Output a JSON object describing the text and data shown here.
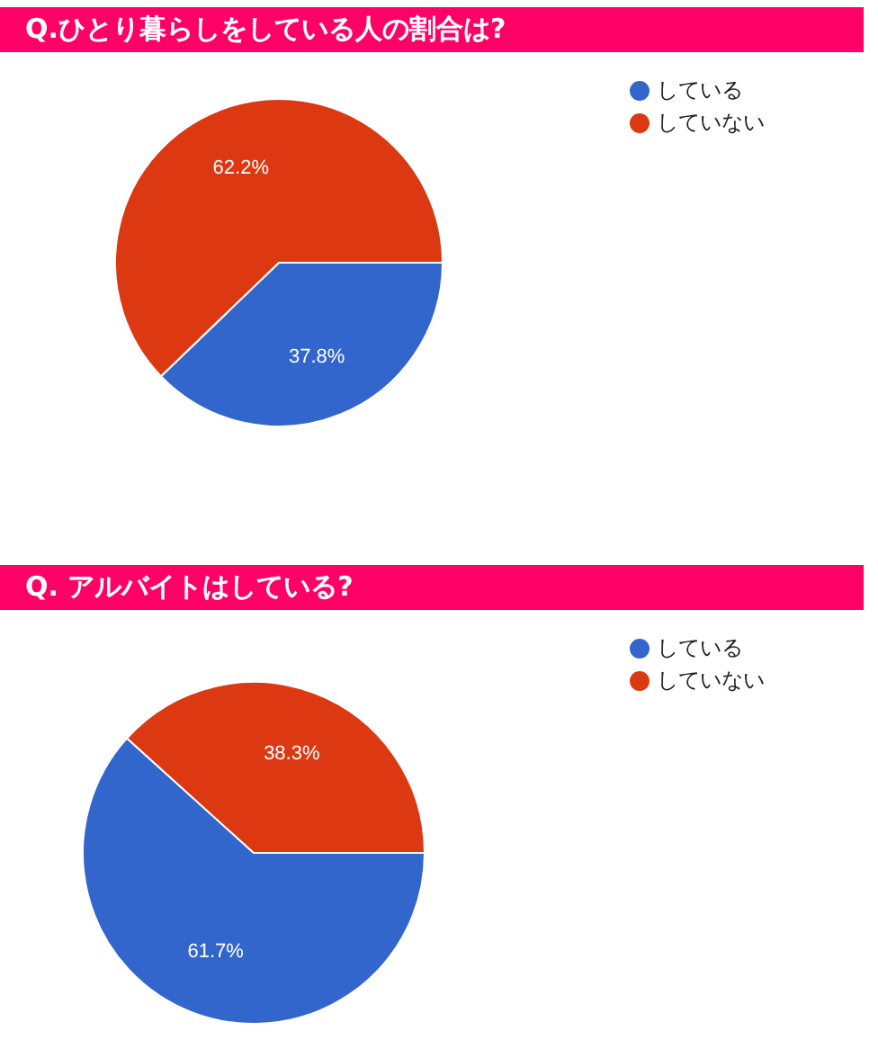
{
  "chart_data": [
    {
      "type": "pie",
      "title": "Q.ひとり暮らしをしている人の割合は?",
      "categories": [
        "している",
        "していない"
      ],
      "values": [
        37.8,
        62.2
      ],
      "value_labels": [
        "37.8%",
        "62.2%"
      ],
      "colors": [
        "#3366cc",
        "#dc3912"
      ],
      "legend": "top right"
    },
    {
      "type": "pie",
      "title": "Q. アルバイトはしている?",
      "categories": [
        "している",
        "していない"
      ],
      "values": [
        61.7,
        38.3
      ],
      "value_labels": [
        "61.7%",
        "38.3%"
      ],
      "colors": [
        "#3366cc",
        "#dc3912"
      ],
      "legend": "top right"
    }
  ]
}
